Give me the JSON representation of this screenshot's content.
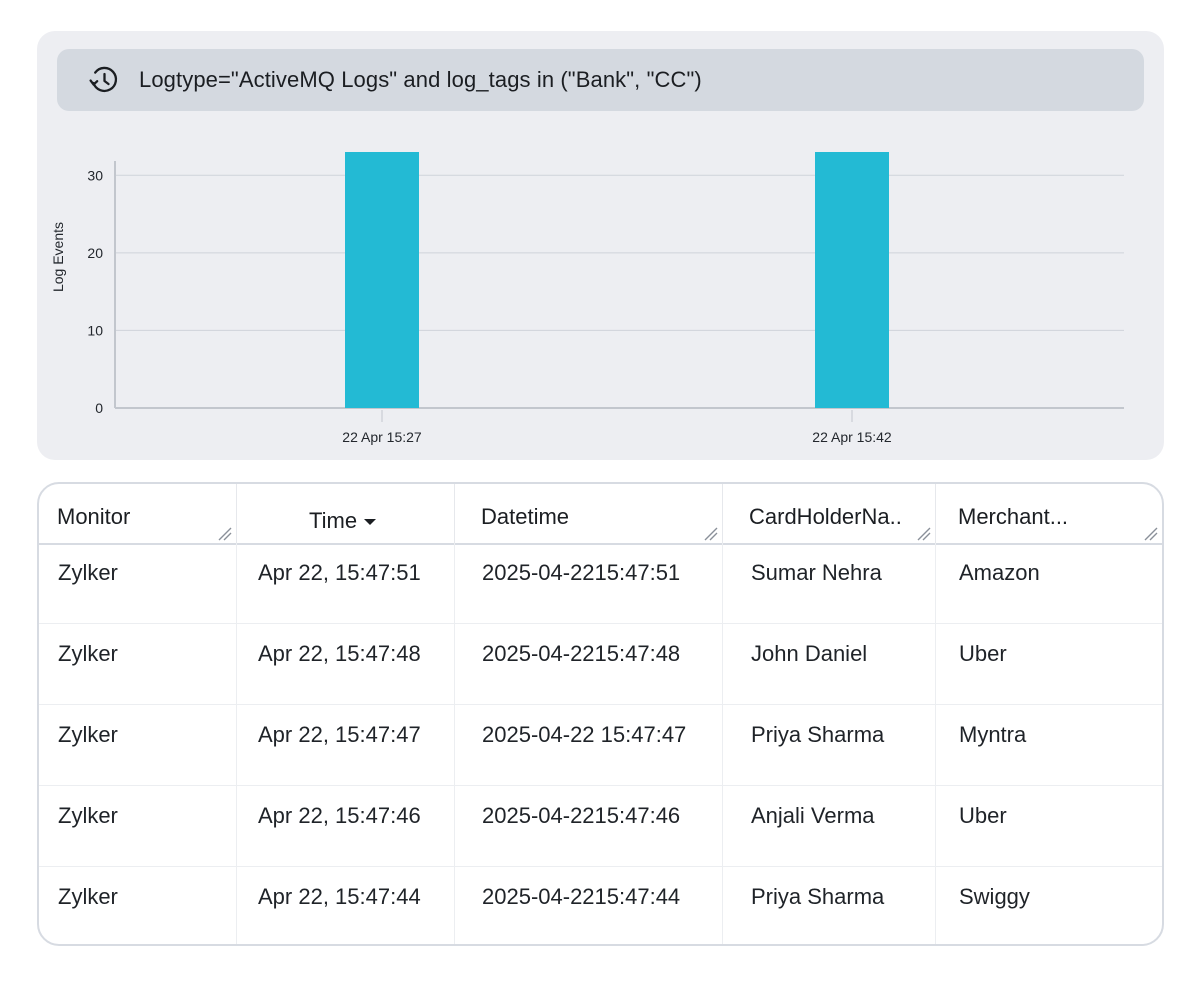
{
  "query": {
    "icon": "history-icon",
    "text": "Logtype=\"ActiveMQ Logs\" and log_tags in (\"Bank\", \"CC\")"
  },
  "chart_data": {
    "type": "bar",
    "categories": [
      "22 Apr 15:27",
      "22 Apr 15:42"
    ],
    "values": [
      33,
      33
    ],
    "ylabel": "Log Events",
    "xlabel": "",
    "yticks": [
      0,
      10,
      20,
      30
    ],
    "ylim": [
      0,
      33
    ],
    "grid": true,
    "bar_color": "#23bad4"
  },
  "table": {
    "columns": [
      {
        "label": "Monitor"
      },
      {
        "label": "Time",
        "sort": "descending"
      },
      {
        "label": "Datetime"
      },
      {
        "label": "CardHolderNa.."
      },
      {
        "label": "Merchant..."
      }
    ],
    "rows": [
      [
        "Zylker",
        "Apr 22, 15:47:51",
        "2025-04-2215:47:51",
        "Sumar Nehra",
        "Amazon"
      ],
      [
        "Zylker",
        "Apr 22, 15:47:48",
        "2025-04-2215:47:48",
        "John Daniel",
        "Uber"
      ],
      [
        "Zylker",
        "Apr 22, 15:47:47",
        "2025-04-22 15:47:47",
        "Priya Sharma",
        "Myntra"
      ],
      [
        "Zylker",
        "Apr 22, 15:47:46",
        "2025-04-2215:47:46",
        "Anjali Verma",
        "Uber"
      ],
      [
        "Zylker",
        "Apr 22, 15:47:44",
        "2025-04-2215:47:44",
        "Priya Sharma",
        "Swiggy"
      ]
    ]
  }
}
